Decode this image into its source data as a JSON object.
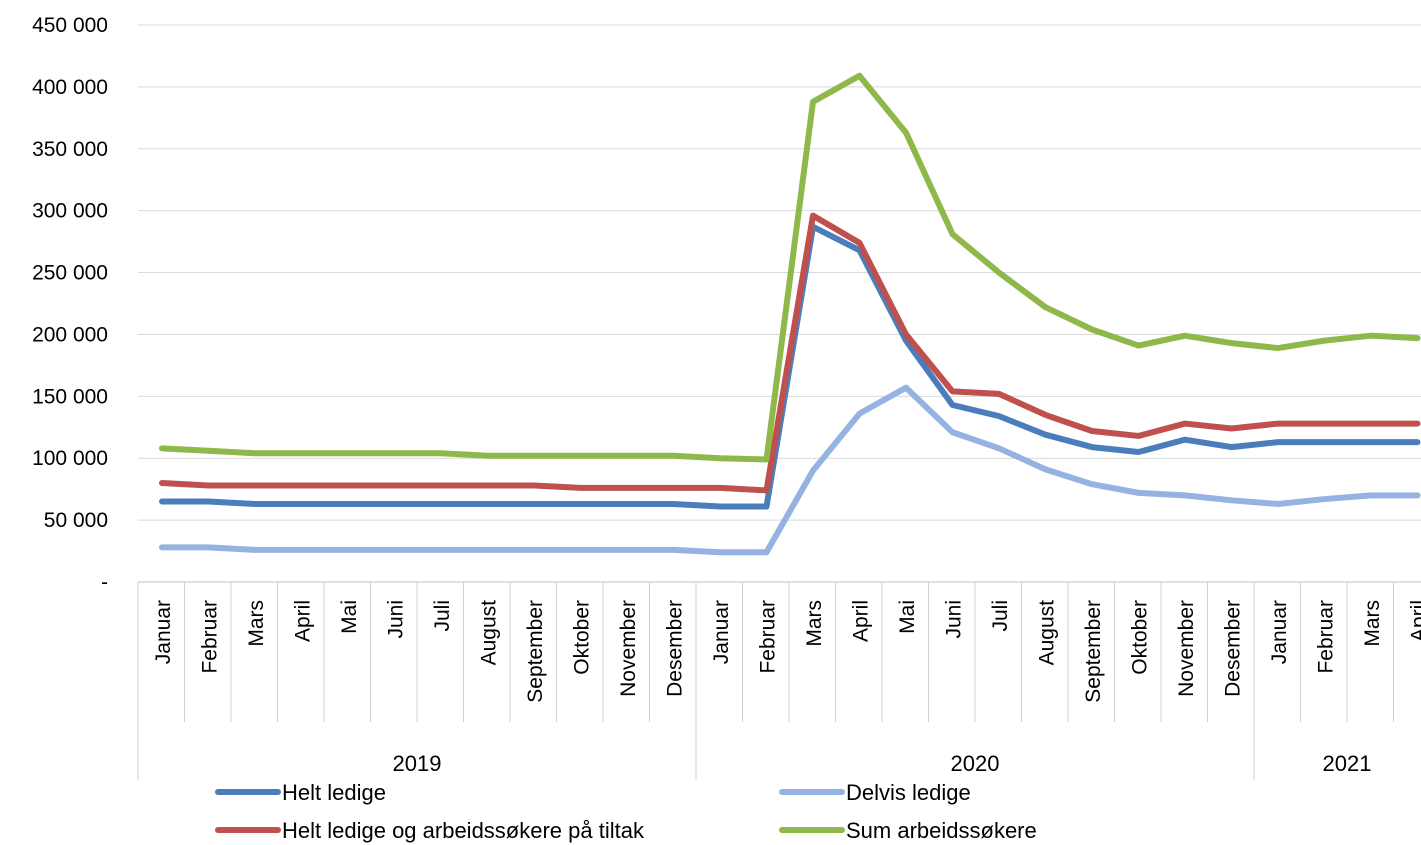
{
  "chart_data": {
    "type": "line",
    "title": "",
    "xlabel": "",
    "ylabel": "",
    "ylim": [
      0,
      450000
    ],
    "yticks": [
      {
        "value": 0,
        "label": "-"
      },
      {
        "value": 50000,
        "label": "50 000"
      },
      {
        "value": 100000,
        "label": "100 000"
      },
      {
        "value": 150000,
        "label": "150 000"
      },
      {
        "value": 200000,
        "label": "200 000"
      },
      {
        "value": 250000,
        "label": "250 000"
      },
      {
        "value": 300000,
        "label": "300 000"
      },
      {
        "value": 350000,
        "label": "350 000"
      },
      {
        "value": 400000,
        "label": "400 000"
      },
      {
        "value": 450000,
        "label": "450 000"
      }
    ],
    "grid": true,
    "legend_position": "bottom",
    "categories": [
      "Januar",
      "Februar",
      "Mars",
      "April",
      "Mai",
      "Juni",
      "Juli",
      "August",
      "September",
      "Oktober",
      "November",
      "Desember",
      "Januar",
      "Februar",
      "Mars",
      "April",
      "Mai",
      "Juni",
      "Juli",
      "August",
      "September",
      "Oktober",
      "November",
      "Desember",
      "Januar",
      "Februar",
      "Mars",
      "April"
    ],
    "groups": [
      {
        "label": "2019",
        "count": 12
      },
      {
        "label": "2020",
        "count": 12
      },
      {
        "label": "2021",
        "count": 4
      }
    ],
    "series": [
      {
        "name": "Helt ledige",
        "color": "#4a7ebb",
        "values": [
          65000,
          65000,
          63000,
          63000,
          63000,
          63000,
          63000,
          63000,
          63000,
          63000,
          63000,
          63000,
          61000,
          61000,
          287000,
          268000,
          195000,
          143000,
          134000,
          119000,
          109000,
          105000,
          115000,
          109000,
          113000,
          113000,
          113000,
          113000
        ]
      },
      {
        "name": "Delvis ledige",
        "color": "#95b3e0",
        "values": [
          28000,
          28000,
          26000,
          26000,
          26000,
          26000,
          26000,
          26000,
          26000,
          26000,
          26000,
          26000,
          24000,
          24000,
          90000,
          136000,
          157000,
          121000,
          108000,
          91000,
          79000,
          72000,
          70000,
          66000,
          63000,
          67000,
          70000,
          70000
        ]
      },
      {
        "name": "Helt ledige og arbeidssøkere på tiltak",
        "color": "#c0504d",
        "values": [
          80000,
          78000,
          78000,
          78000,
          78000,
          78000,
          78000,
          78000,
          78000,
          76000,
          76000,
          76000,
          76000,
          74000,
          296000,
          274000,
          200000,
          154000,
          152000,
          135000,
          122000,
          118000,
          128000,
          124000,
          128000,
          128000,
          128000,
          128000
        ]
      },
      {
        "name": "Sum arbeidssøkere",
        "color": "#8fb84a",
        "values": [
          108000,
          106000,
          104000,
          104000,
          104000,
          104000,
          104000,
          102000,
          102000,
          102000,
          102000,
          102000,
          100000,
          99000,
          388000,
          409000,
          363000,
          281000,
          250000,
          222000,
          204000,
          191000,
          199000,
          193000,
          189000,
          195000,
          199000,
          197000
        ]
      }
    ]
  }
}
